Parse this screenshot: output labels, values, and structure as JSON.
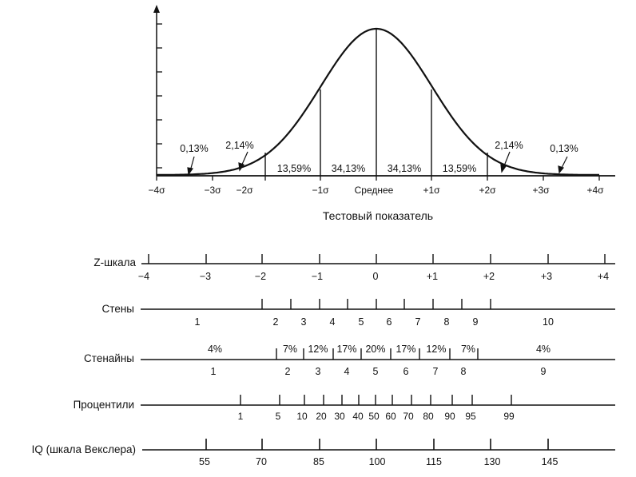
{
  "curve": {
    "sigma_labels": [
      "−4σ",
      "−3σ",
      "−2σ",
      "−1σ",
      "Среднее",
      "+1σ",
      "+2σ",
      "+3σ",
      "+4σ"
    ],
    "band_percents": [
      "0,13%",
      "2,14%",
      "13,59%",
      "34,13%",
      "34,13%",
      "13,59%",
      "2,14%",
      "0,13%"
    ],
    "axis_title": "Тестовый показатель"
  },
  "scales": {
    "z": {
      "label": "Z-шкала",
      "values": [
        "−4",
        "−3",
        "−2",
        "−1",
        "0",
        "+1",
        "+2",
        "+3",
        "+4"
      ]
    },
    "stens": {
      "label": "Стены",
      "values": [
        "1",
        "2",
        "3",
        "4",
        "5",
        "6",
        "7",
        "8",
        "9",
        "10"
      ]
    },
    "stanines": {
      "label": "Стенайны",
      "values": [
        "1",
        "2",
        "3",
        "4",
        "5",
        "6",
        "7",
        "8",
        "9"
      ],
      "percents": [
        "4%",
        "7%",
        "12%",
        "17%",
        "20%",
        "17%",
        "12%",
        "7%",
        "4%"
      ]
    },
    "percentiles": {
      "label": "Процентили",
      "values": [
        "1",
        "5",
        "10",
        "20",
        "30",
        "40",
        "50",
        "60",
        "70",
        "80",
        "90",
        "95",
        "99"
      ]
    },
    "iq": {
      "label": "IQ (шкала Векслера)",
      "values": [
        "55",
        "70",
        "85",
        "100",
        "115",
        "130",
        "145"
      ]
    }
  }
}
